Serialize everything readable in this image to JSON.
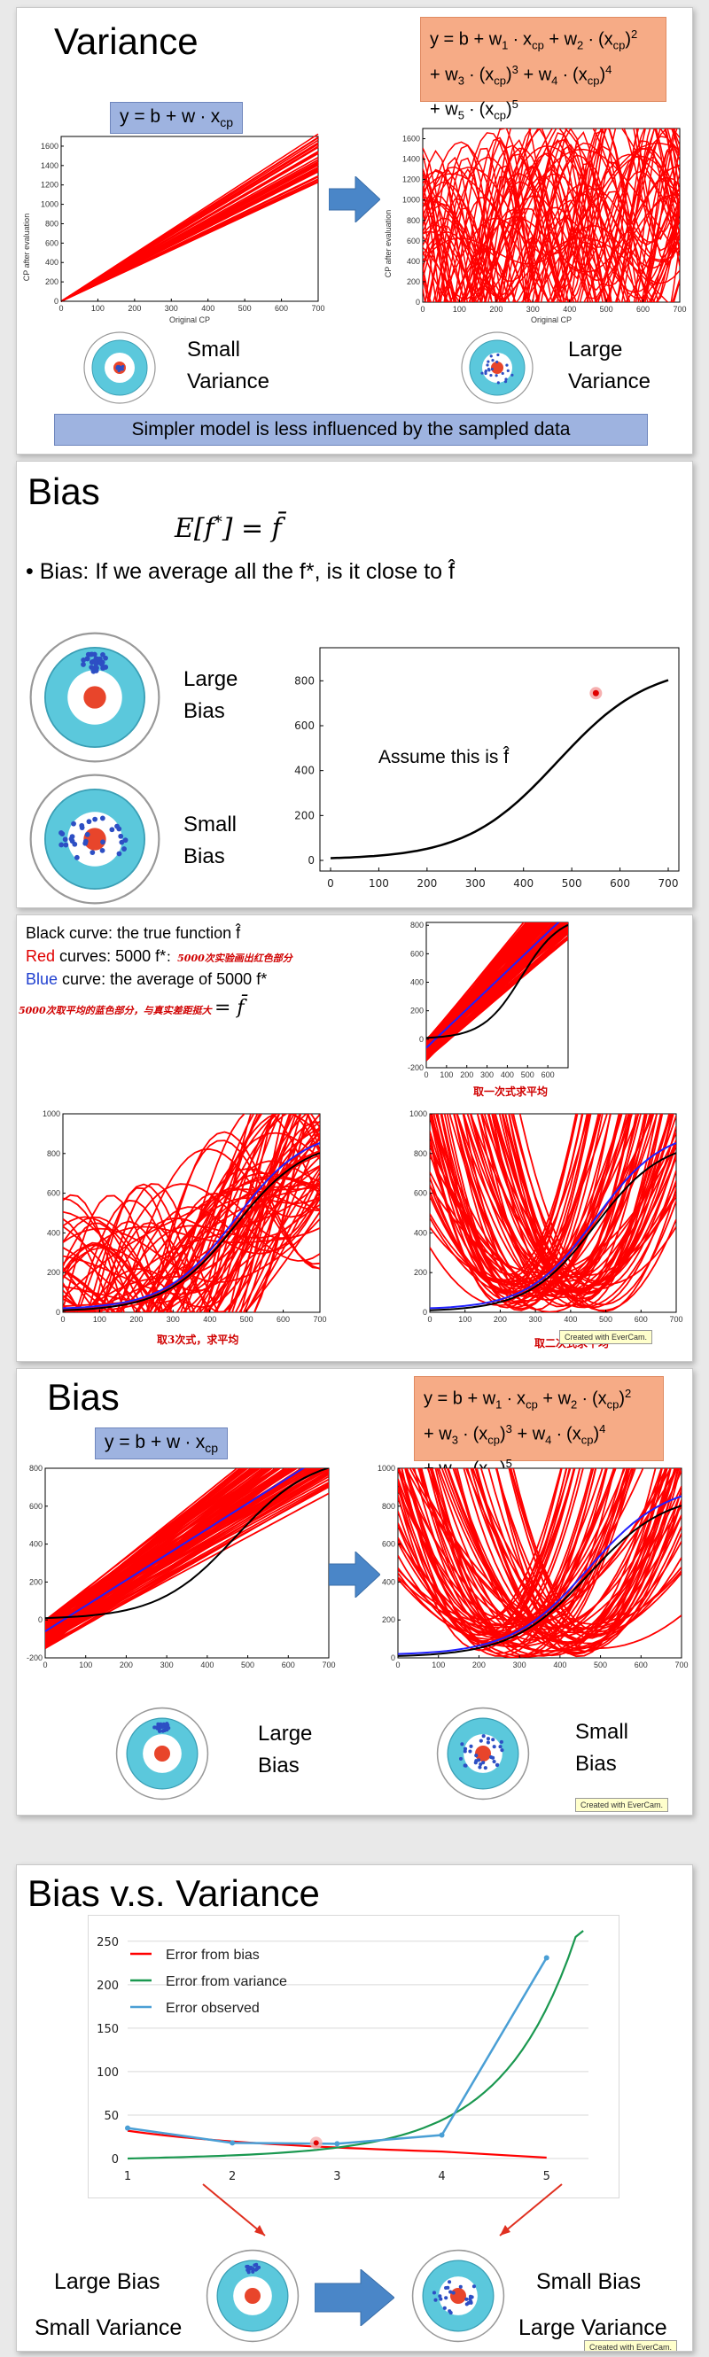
{
  "slide1": {
    "title": "Variance",
    "simple_eq": "y = b + w ∙ xcp",
    "complex_eq_lines": [
      "y = b + w1 ∙ xcp + w2 ∙ (xcp)2",
      "+ w3 ∙ (xcp)3 + w4 ∙ (xcp)4",
      "+ w5 ∙ (xcp)5"
    ],
    "left_label": [
      "Small",
      "Variance"
    ],
    "right_label": [
      "Large",
      "Variance"
    ],
    "banner": "Simpler model is less influenced by the sampled data",
    "plot_ylabel": "CP after evaluation",
    "plot_xlabel": "Original CP"
  },
  "slide2": {
    "title": "Bias",
    "formula": "E[f*] = f̄",
    "bullet": "Bias: If we average all the f*, is it close to f̂",
    "large_bias": [
      "Large",
      "Bias"
    ],
    "small_bias": [
      "Small",
      "Bias"
    ],
    "assume": "Assume this is f̂"
  },
  "slide3": {
    "line1": "Black curve: the true function f̂",
    "line2_red": "Red",
    "line2": "curves: 5000 f*",
    "line2_cn": "5000次实验画出红色部分",
    "line3_blue": "Blue",
    "line3": "curve: the average of 5000 f*",
    "line4_cn": "5000次取平均的蓝色部分，与真实差距挺大",
    "line4_math": "= f̄",
    "cap1": "取一次式求平均",
    "cap3": "取3次式，求平均",
    "cap2": "取二次式求平均",
    "evercam": "Created with EverCam."
  },
  "slide4": {
    "title": "Bias",
    "simple_eq": "y = b + w ∙ xcp",
    "complex_eq_lines": [
      "y = b + w1 ∙ xcp + w2 ∙ (xcp)2",
      "+ w3 ∙ (xcp)3 + w4 ∙ (xcp)4",
      "+ w5 ∙ (xcp)5"
    ],
    "large_bias": [
      "Large",
      "Bias"
    ],
    "small_bias": [
      "Small",
      "Bias"
    ],
    "evercam": "Created with EverCam."
  },
  "slide5": {
    "title": "Bias v.s. Variance",
    "legend": [
      "Error from bias",
      "Error from variance",
      "Error observed"
    ],
    "left_caption": [
      "Large Bias",
      "Small Variance"
    ],
    "right_caption": [
      "Small Bias",
      "Large Variance"
    ],
    "evercam": "Created with EverCam."
  },
  "colors": {
    "red": "#ff0000",
    "blue": "#2020ff",
    "green": "#1a9850",
    "lightblue": "#4a9fd5",
    "orange": "#f6ab86",
    "eqblue": "#9eb3e0"
  },
  "chart_data": [
    {
      "type": "line",
      "title": "",
      "xlabel": "Original CP",
      "ylabel": "CP after evaluation",
      "xlim": [
        0,
        700
      ],
      "ylim": [
        0,
        1700
      ],
      "xticks": [
        0,
        100,
        200,
        300,
        400,
        500,
        600,
        700
      ],
      "yticks": [
        0,
        200,
        400,
        600,
        800,
        1000,
        1200,
        1400,
        1600
      ],
      "grid": false
    },
    {
      "type": "line",
      "title": "",
      "xlabel": "Original CP",
      "ylabel": "CP after evaluation",
      "xlim": [
        0,
        700
      ],
      "ylim": [
        0,
        1700
      ],
      "xticks": [
        0,
        100,
        200,
        300,
        400,
        500,
        600,
        700
      ],
      "yticks": [
        0,
        200,
        400,
        600,
        800,
        1000,
        1200,
        1400,
        1600
      ],
      "grid": false
    },
    {
      "type": "line",
      "title": "",
      "xlim": [
        0,
        700
      ],
      "ylim": [
        0,
        900
      ],
      "xticks": [
        0,
        100,
        200,
        300,
        400,
        500,
        600,
        700
      ],
      "yticks": [
        0,
        200,
        400,
        600,
        800
      ],
      "series": [
        {
          "x": [
            0,
            100,
            200,
            300,
            400,
            500,
            550,
            600,
            700
          ],
          "values": [
            10,
            30,
            90,
            200,
            380,
            580,
            680,
            770,
            880
          ]
        }
      ]
    },
    {
      "type": "line",
      "title": "",
      "xlim": [
        0,
        700
      ],
      "ylim": [
        -200,
        1000
      ],
      "xticks": [
        0,
        100,
        200,
        300,
        400,
        500,
        600,
        700
      ],
      "yticks": [
        -200,
        0,
        200,
        400,
        600,
        800,
        1000
      ]
    },
    {
      "type": "line",
      "title": "",
      "xlim": [
        1,
        5.4
      ],
      "ylim": [
        0,
        260
      ],
      "categories": [
        "1",
        "2",
        "3",
        "4",
        "5"
      ],
      "yticks": [
        0,
        50,
        100,
        150,
        200,
        250
      ],
      "series": [
        {
          "name": "Error from bias",
          "values": [
            32,
            20,
            14,
            8,
            1
          ]
        },
        {
          "name": "Error from variance",
          "values": [
            0,
            5,
            12,
            25,
            260
          ]
        },
        {
          "name": "Error observed",
          "values": [
            35,
            18,
            17,
            27,
            231
          ]
        }
      ]
    }
  ]
}
